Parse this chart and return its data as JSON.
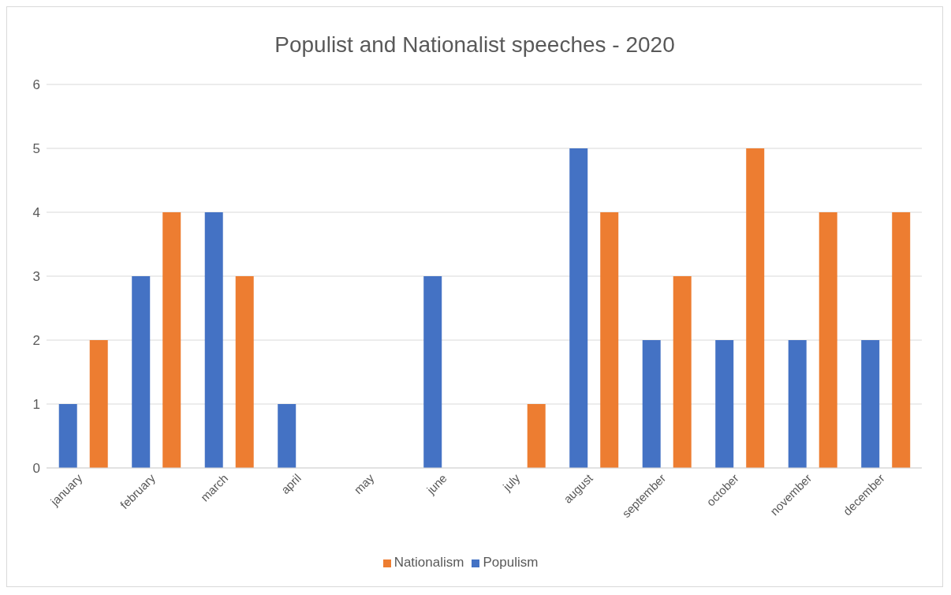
{
  "chart_data": {
    "type": "bar",
    "title": "Populist and Nationalist speeches - 2020",
    "categories": [
      "january",
      "february",
      "march",
      "april",
      "may",
      "june",
      "july",
      "august",
      "september",
      "october",
      "november",
      "december"
    ],
    "series": [
      {
        "name": "Populism",
        "color": "#4472c4",
        "values": [
          1,
          3,
          4,
          1,
          0,
          3,
          0,
          5,
          2,
          2,
          2,
          2
        ]
      },
      {
        "name": "Nationalism",
        "color": "#ed7d31",
        "values": [
          2,
          4,
          3,
          0,
          0,
          0,
          1,
          4,
          3,
          5,
          4,
          4
        ]
      }
    ],
    "ylim": [
      0,
      6
    ],
    "yticks": [
      0,
      1,
      2,
      3,
      4,
      5,
      6
    ],
    "grid": "y",
    "legend": "bottom"
  }
}
